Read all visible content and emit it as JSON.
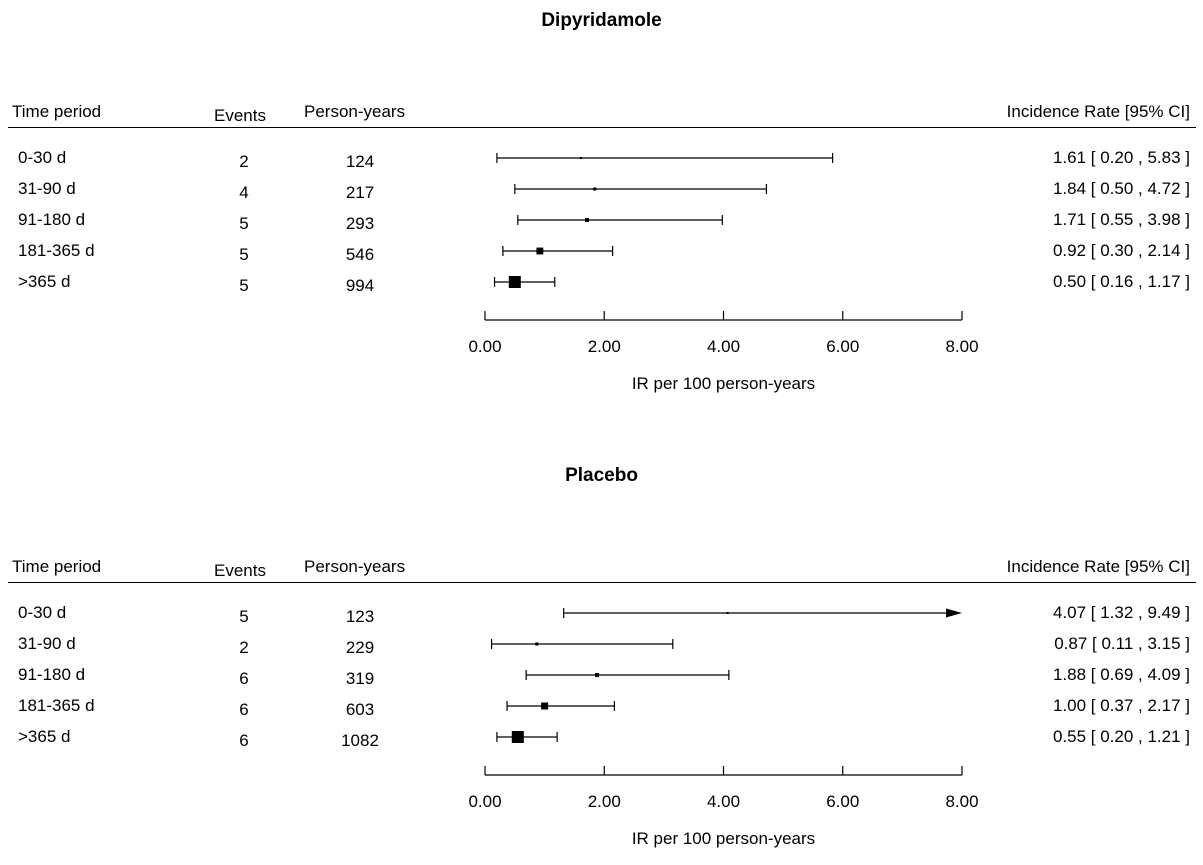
{
  "columns": {
    "time_period": "Time period",
    "events": "Events",
    "person_years": "Person-years",
    "incidence_rate": "Incidence Rate [95% CI]"
  },
  "chart_data": [
    {
      "type": "forest",
      "title": "Dipyridamole",
      "xlabel": "IR per 100 person-years",
      "xlim": [
        0,
        8
      ],
      "xticks": [
        "0.00",
        "2.00",
        "4.00",
        "6.00",
        "8.00"
      ],
      "rows": [
        {
          "period": "0-30 d",
          "events": "2",
          "person_years": "124",
          "ir": 1.61,
          "lo": 0.2,
          "hi": 5.83,
          "ir_text": "1.61 [ 0.20 , 5.83 ]"
        },
        {
          "period": "31-90 d",
          "events": "4",
          "person_years": "217",
          "ir": 1.84,
          "lo": 0.5,
          "hi": 4.72,
          "ir_text": "1.84 [ 0.50 , 4.72 ]"
        },
        {
          "period": "91-180 d",
          "events": "5",
          "person_years": "293",
          "ir": 1.71,
          "lo": 0.55,
          "hi": 3.98,
          "ir_text": "1.71 [ 0.55 , 3.98 ]"
        },
        {
          "period": "181-365 d",
          "events": "5",
          "person_years": "546",
          "ir": 0.92,
          "lo": 0.3,
          "hi": 2.14,
          "ir_text": "0.92 [ 0.30 , 2.14 ]"
        },
        {
          "period": ">365 d",
          "events": "5",
          "person_years": "994",
          "ir": 0.5,
          "lo": 0.16,
          "hi": 1.17,
          "ir_text": "0.50 [ 0.16 , 1.17 ]"
        }
      ]
    },
    {
      "type": "forest",
      "title": "Placebo",
      "xlabel": "IR per 100 person-years",
      "xlim": [
        0,
        8
      ],
      "xticks": [
        "0.00",
        "2.00",
        "4.00",
        "6.00",
        "8.00"
      ],
      "rows": [
        {
          "period": "0-30 d",
          "events": "5",
          "person_years": "123",
          "ir": 4.07,
          "lo": 1.32,
          "hi": 9.49,
          "ir_text": "4.07 [ 1.32 , 9.49 ]"
        },
        {
          "period": "31-90 d",
          "events": "2",
          "person_years": "229",
          "ir": 0.87,
          "lo": 0.11,
          "hi": 3.15,
          "ir_text": "0.87 [ 0.11 , 3.15 ]"
        },
        {
          "period": "91-180 d",
          "events": "6",
          "person_years": "319",
          "ir": 1.88,
          "lo": 0.69,
          "hi": 4.09,
          "ir_text": "1.88 [ 0.69 , 4.09 ]"
        },
        {
          "period": "181-365 d",
          "events": "6",
          "person_years": "603",
          "ir": 1.0,
          "lo": 0.37,
          "hi": 2.17,
          "ir_text": "1.00 [ 0.37 , 2.17 ]"
        },
        {
          "period": ">365 d",
          "events": "6",
          "person_years": "1082",
          "ir": 0.55,
          "lo": 0.2,
          "hi": 1.21,
          "ir_text": "0.55 [ 0.20 , 1.21 ]"
        }
      ]
    }
  ]
}
